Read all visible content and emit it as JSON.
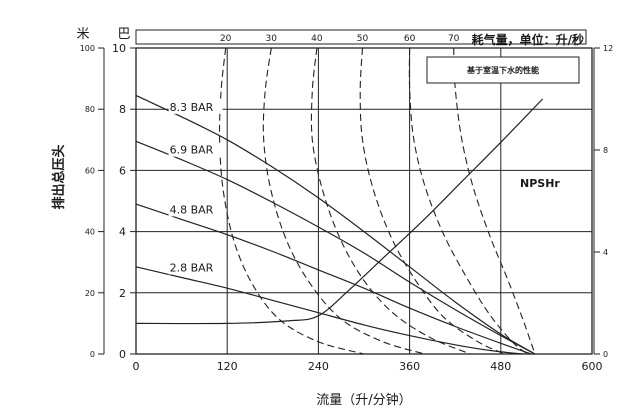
{
  "chart_data": {
    "type": "line",
    "top_unit_labels": [
      "米",
      "巴"
    ],
    "air_consumption_title": "耗气量，单位：升/秒",
    "legend_note": "基于室温下水的性能",
    "xlabel": "流量（升/分钟）",
    "ylabel_left": "排出总压头",
    "x_ticks": [
      "0",
      "120",
      "240",
      "360",
      "480",
      "600"
    ],
    "xlim": [
      0,
      600
    ],
    "bar_ticks": [
      "0",
      "2",
      "4",
      "6",
      "8",
      "10"
    ],
    "bar_lim": [
      0,
      10
    ],
    "meter_ticks": [
      "0",
      "20",
      "40",
      "60",
      "80",
      "100"
    ],
    "meter_lim": [
      0,
      100
    ],
    "npsh_ticks": [
      "0",
      "4",
      "8",
      "12"
    ],
    "npsh_lim": [
      0,
      12
    ],
    "grid": true,
    "pressure_series": [
      {
        "name": "8.3 BAR",
        "points": [
          [
            0,
            8.45
          ],
          [
            60,
            7.75
          ],
          [
            120,
            7.0
          ],
          [
            180,
            6.1
          ],
          [
            240,
            5.1
          ],
          [
            300,
            4.0
          ],
          [
            360,
            2.85
          ],
          [
            420,
            1.7
          ],
          [
            480,
            0.65
          ],
          [
            525,
            0
          ]
        ]
      },
      {
        "name": "6.9 BAR",
        "points": [
          [
            0,
            6.95
          ],
          [
            60,
            6.35
          ],
          [
            120,
            5.7
          ],
          [
            180,
            4.95
          ],
          [
            240,
            4.15
          ],
          [
            300,
            3.3
          ],
          [
            360,
            2.35
          ],
          [
            420,
            1.45
          ],
          [
            480,
            0.6
          ],
          [
            525,
            0
          ]
        ]
      },
      {
        "name": "4.8 BAR",
        "points": [
          [
            0,
            4.9
          ],
          [
            60,
            4.4
          ],
          [
            120,
            3.9
          ],
          [
            180,
            3.35
          ],
          [
            240,
            2.75
          ],
          [
            300,
            2.15
          ],
          [
            360,
            1.5
          ],
          [
            420,
            0.9
          ],
          [
            480,
            0.35
          ],
          [
            520,
            0
          ]
        ]
      },
      {
        "name": "2.8 BAR",
        "points": [
          [
            0,
            2.85
          ],
          [
            60,
            2.5
          ],
          [
            120,
            2.15
          ],
          [
            180,
            1.75
          ],
          [
            240,
            1.35
          ],
          [
            300,
            0.95
          ],
          [
            360,
            0.6
          ],
          [
            420,
            0.3
          ],
          [
            470,
            0.1
          ],
          [
            510,
            0
          ]
        ]
      }
    ],
    "air_lines": [
      {
        "name": "20",
        "top_x": 118,
        "points": [
          [
            118,
            10
          ],
          [
            112,
            8.6
          ],
          [
            110,
            7.0
          ],
          [
            115,
            5.3
          ],
          [
            130,
            3.6
          ],
          [
            155,
            2.2
          ],
          [
            190,
            1.1
          ],
          [
            240,
            0.4
          ],
          [
            300,
            0
          ]
        ]
      },
      {
        "name": "30",
        "top_x": 178,
        "points": [
          [
            178,
            10
          ],
          [
            170,
            8.6
          ],
          [
            168,
            7.0
          ],
          [
            178,
            5.3
          ],
          [
            200,
            3.6
          ],
          [
            232,
            2.2
          ],
          [
            272,
            1.1
          ],
          [
            325,
            0.4
          ],
          [
            380,
            0
          ]
        ]
      },
      {
        "name": "40",
        "top_x": 238,
        "points": [
          [
            238,
            10
          ],
          [
            232,
            8.6
          ],
          [
            232,
            7.0
          ],
          [
            245,
            5.4
          ],
          [
            268,
            3.8
          ],
          [
            300,
            2.4
          ],
          [
            340,
            1.3
          ],
          [
            390,
            0.5
          ],
          [
            440,
            0
          ]
        ]
      },
      {
        "name": "50",
        "top_x": 298,
        "points": [
          [
            298,
            10
          ],
          [
            295,
            8.6
          ],
          [
            298,
            7.0
          ],
          [
            312,
            5.4
          ],
          [
            336,
            3.8
          ],
          [
            368,
            2.4
          ],
          [
            405,
            1.2
          ],
          [
            450,
            0.4
          ],
          [
            485,
            0
          ]
        ]
      },
      {
        "name": "60",
        "top_x": 360,
        "points": [
          [
            360,
            10
          ],
          [
            360,
            8.7
          ],
          [
            365,
            7.1
          ],
          [
            380,
            5.5
          ],
          [
            405,
            3.9
          ],
          [
            435,
            2.5
          ],
          [
            465,
            1.3
          ],
          [
            495,
            0.4
          ],
          [
            515,
            0
          ]
        ]
      },
      {
        "name": "70",
        "top_x": 418,
        "points": [
          [
            418,
            10
          ],
          [
            420,
            8.7
          ],
          [
            428,
            7.1
          ],
          [
            443,
            5.5
          ],
          [
            465,
            3.9
          ],
          [
            488,
            2.5
          ],
          [
            508,
            1.2
          ],
          [
            525,
            0
          ]
        ]
      }
    ],
    "npsh": {
      "name": "NPSHr",
      "points": [
        [
          0,
          1.2
        ],
        [
          120,
          1.2
        ],
        [
          200,
          1.3
        ],
        [
          240,
          1.5
        ],
        [
          280,
          2.5
        ],
        [
          330,
          3.9
        ],
        [
          380,
          5.3
        ],
        [
          430,
          6.8
        ],
        [
          480,
          8.3
        ],
        [
          535,
          10.0
        ]
      ]
    }
  }
}
